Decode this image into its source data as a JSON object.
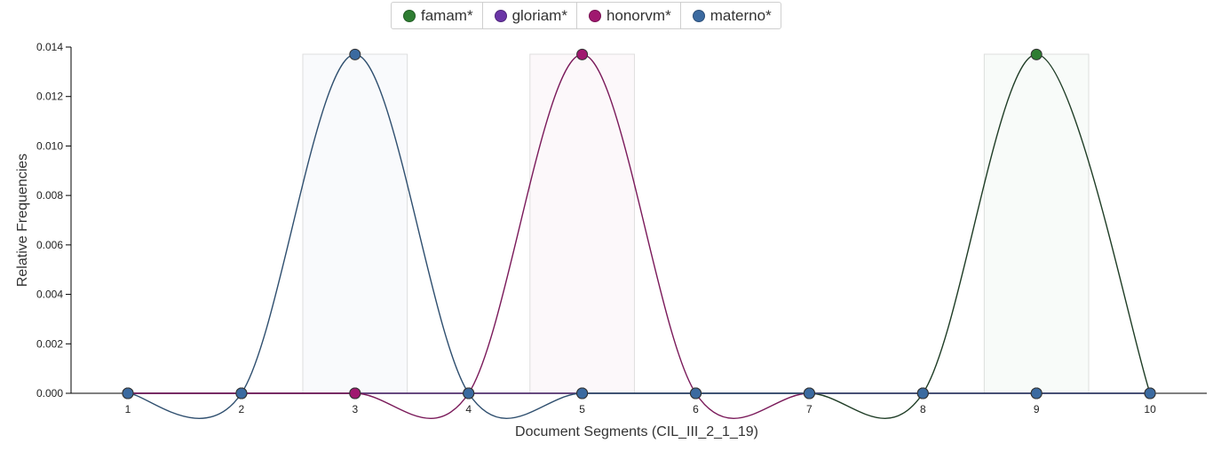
{
  "legend": [
    {
      "label": "famam*",
      "color": "#2e7d32"
    },
    {
      "label": "gloriam*",
      "color": "#6a35a6"
    },
    {
      "label": "honorvm*",
      "color": "#a0186f"
    },
    {
      "label": "materno*",
      "color": "#3b6aa0"
    }
  ],
  "chart_data": {
    "type": "line",
    "xlabel": "Document Segments (CIL_III_2_1_19)",
    "ylabel": "Relative Frequencies",
    "x": [
      1,
      2,
      3,
      4,
      5,
      6,
      7,
      8,
      9,
      10
    ],
    "ylim": [
      0,
      0.014
    ],
    "yticks": [
      "0.000",
      "0.002",
      "0.004",
      "0.006",
      "0.008",
      "0.010",
      "0.012",
      "0.014"
    ],
    "series": [
      {
        "name": "famam*",
        "color": "#2e7d32",
        "line_color": "#1f3d26",
        "values": [
          0,
          0,
          0,
          0,
          0,
          0,
          0,
          0,
          0.0137,
          0
        ]
      },
      {
        "name": "gloriam*",
        "color": "#6a35a6",
        "line_color": "#5a2f7a",
        "values": [
          0,
          0,
          0,
          0,
          0,
          0,
          0,
          0,
          0,
          0
        ]
      },
      {
        "name": "honorvm*",
        "color": "#a0186f",
        "line_color": "#7a1a5a",
        "values": [
          0,
          0,
          0,
          0,
          0.0137,
          0,
          0,
          0,
          0,
          0
        ]
      },
      {
        "name": "materno*",
        "color": "#3b6aa0",
        "line_color": "#2f4f6f",
        "values": [
          0,
          0,
          0.0137,
          0,
          0,
          0,
          0,
          0,
          0,
          0
        ]
      }
    ],
    "highlights": [
      {
        "x": 3,
        "series": "materno*"
      },
      {
        "x": 5,
        "series": "honorvm*"
      },
      {
        "x": 9,
        "series": "famam*"
      }
    ]
  }
}
